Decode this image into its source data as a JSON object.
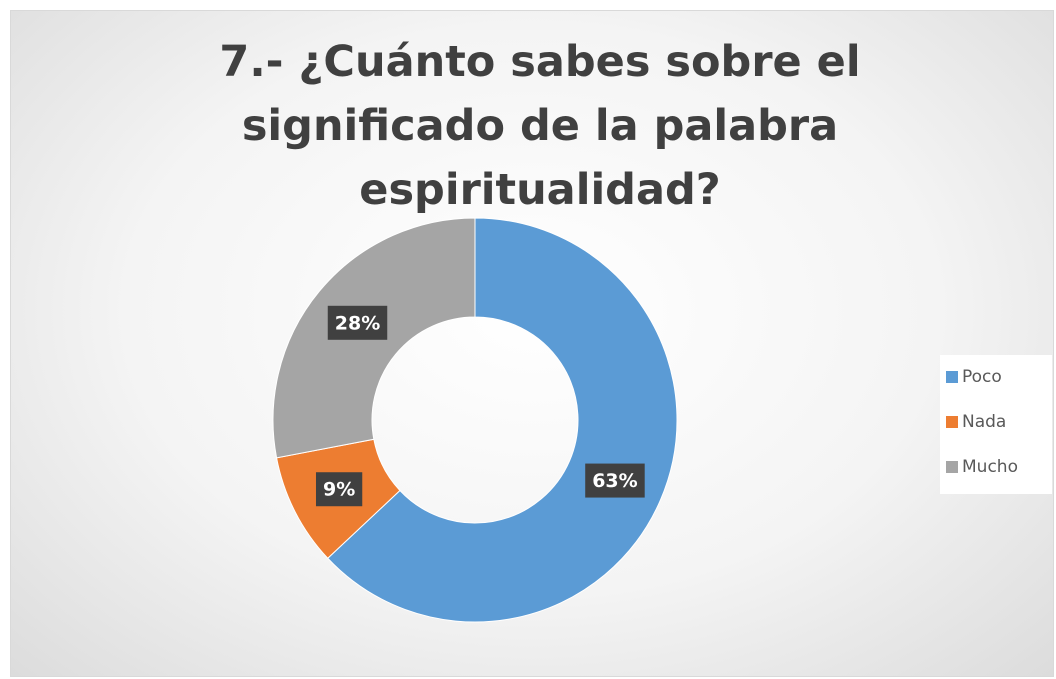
{
  "chart_data": {
    "type": "donut",
    "title": "7.- ¿Cuánto sabes sobre el significado de la palabra espiritualidad?",
    "categories": [
      "Poco",
      "Nada",
      "Mucho"
    ],
    "values": [
      63,
      9,
      28
    ],
    "value_labels": [
      "63%",
      "9%",
      "28%"
    ],
    "colors": [
      "#5b9bd5",
      "#ed7d31",
      "#a5a5a5"
    ],
    "legend": "right"
  }
}
